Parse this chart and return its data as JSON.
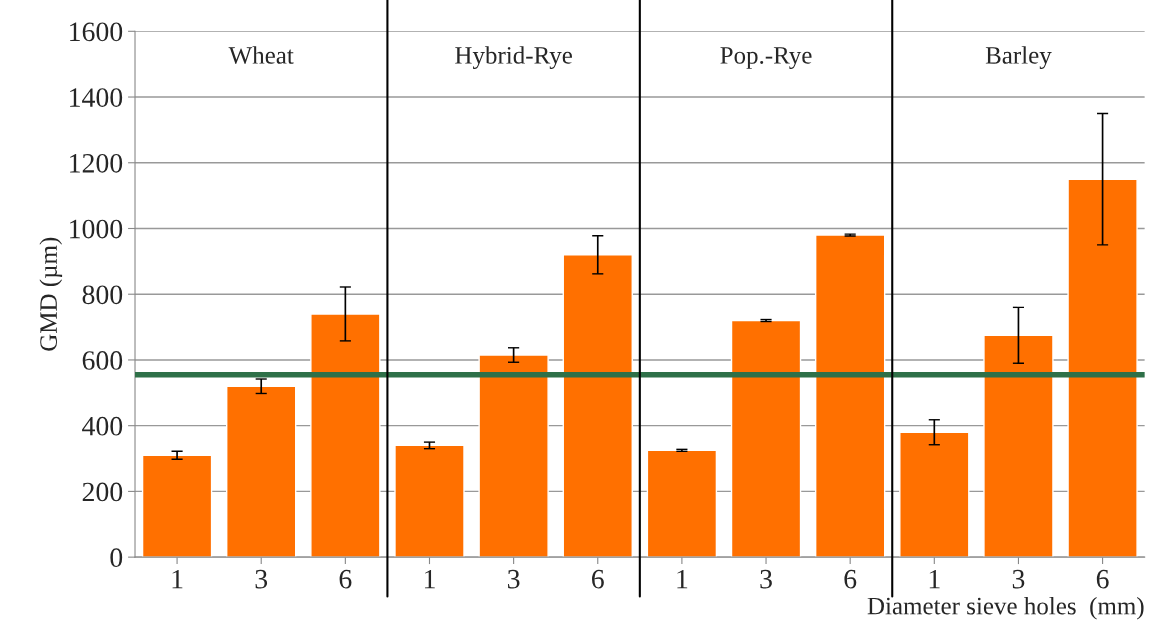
{
  "chart_data": {
    "type": "bar",
    "categories": [
      "1",
      "3",
      "6",
      "1",
      "3",
      "6",
      "1",
      "3",
      "6",
      "1",
      "3",
      "6"
    ],
    "series": [
      {
        "color": "#ff7000",
        "values": [
          310,
          520,
          740,
          340,
          615,
          920,
          325,
          720,
          980,
          380,
          675,
          1150
        ],
        "errors": [
          12,
          22,
          82,
          10,
          22,
          58,
          3,
          3,
          3,
          38,
          85,
          200
        ]
      }
    ],
    "ylim": [
      0,
      1600
    ],
    "yticks": [
      0,
      200,
      400,
      600,
      800,
      1000,
      1200,
      1400,
      1600
    ],
    "ylabel": "GMD (µm)",
    "xlabel": "Diameter sieve holes  (mm)",
    "grid": "y",
    "ref_lines": [
      {
        "axis": "y",
        "value": 555,
        "color": "#2e7048"
      }
    ],
    "annotations": [
      "Wheat",
      "Hybrid-Rye",
      "Pop.-Rye",
      "Barley"
    ]
  }
}
